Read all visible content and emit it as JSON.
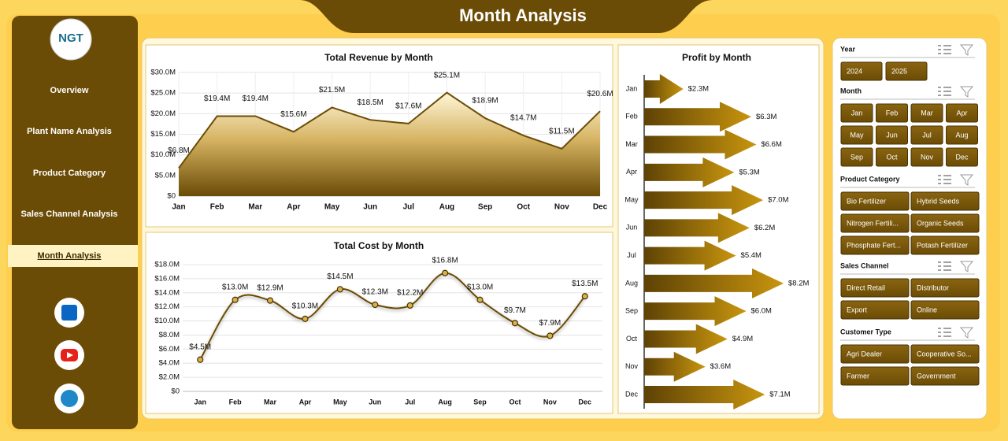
{
  "header": {
    "title": "Month Analysis",
    "logo": "NGT"
  },
  "nav": [
    "Overview",
    "Plant Name Analysis",
    "Product Category",
    "Sales Channel Analysis",
    "Month Analysis"
  ],
  "slicers": [
    {
      "title": "Year",
      "items": [
        "2024",
        "2025"
      ]
    },
    {
      "title": "Month",
      "items": [
        "Jan",
        "Feb",
        "Mar",
        "Apr",
        "May",
        "Jun",
        "Jul",
        "Aug",
        "Sep",
        "Oct",
        "Nov",
        "Dec"
      ]
    },
    {
      "title": "Product Category",
      "items": [
        "Bio Fertilizer",
        "Hybrid Seeds",
        "Nitrogen Fertili...",
        "Organic Seeds",
        "Phosphate Fert...",
        "Potash Fertilizer"
      ]
    },
    {
      "title": "Sales Channel",
      "items": [
        "Direct Retail",
        "Distributor",
        "Export",
        "Online"
      ]
    },
    {
      "title": "Customer Type",
      "items": [
        "Agri Dealer",
        "Cooperative So...",
        "Farmer",
        "Government"
      ]
    }
  ],
  "chart_data": [
    {
      "type": "area",
      "title": "Total Revenue by Month",
      "color": "#6b4c06",
      "categories": [
        "Jan",
        "Feb",
        "Mar",
        "Apr",
        "May",
        "Jun",
        "Jul",
        "Aug",
        "Sep",
        "Oct",
        "Nov",
        "Dec"
      ],
      "values": [
        6.8,
        19.4,
        19.4,
        15.6,
        21.5,
        18.5,
        17.6,
        25.1,
        18.9,
        14.7,
        11.5,
        20.6
      ],
      "value_labels": [
        "$6.8M",
        "$19.4M",
        "$19.4M",
        "$15.6M",
        "$21.5M",
        "$18.5M",
        "$17.6M",
        "$25.1M",
        "$18.9M",
        "$14.7M",
        "$11.5M",
        "$20.6M"
      ],
      "ylim": [
        0,
        30
      ],
      "yticks": [
        {
          "value": 0,
          "label": "$0"
        },
        {
          "value": 5,
          "label": "$5.0M"
        },
        {
          "value": 10,
          "label": "$10.0M"
        },
        {
          "value": 15,
          "label": "$15.0M"
        },
        {
          "value": 20,
          "label": "$20.0M"
        },
        {
          "value": 25,
          "label": "$25.0M"
        },
        {
          "value": 30,
          "label": "$30.0M"
        }
      ],
      "grid": true
    },
    {
      "type": "line",
      "title": "Total Cost by Month",
      "color": "#6b4c06",
      "categories": [
        "Jan",
        "Feb",
        "Mar",
        "Apr",
        "May",
        "Jun",
        "Jul",
        "Aug",
        "Sep",
        "Oct",
        "Nov",
        "Dec"
      ],
      "values": [
        4.5,
        13.0,
        12.9,
        10.3,
        14.5,
        12.3,
        12.2,
        16.8,
        13.0,
        9.7,
        7.9,
        13.5
      ],
      "value_labels": [
        "$4.5M",
        "$13.0M",
        "$12.9M",
        "$10.3M",
        "$14.5M",
        "$12.3M",
        "$12.2M",
        "$16.8M",
        "$13.0M",
        "$9.7M",
        "$7.9M",
        "$13.5M"
      ],
      "ylim": [
        0,
        18
      ],
      "yticks": [
        {
          "value": 0,
          "label": "$0"
        },
        {
          "value": 2,
          "label": "$2.0M"
        },
        {
          "value": 4,
          "label": "$4.0M"
        },
        {
          "value": 6,
          "label": "$6.0M"
        },
        {
          "value": 8,
          "label": "$8.0M"
        },
        {
          "value": 10,
          "label": "$10.0M"
        },
        {
          "value": 12,
          "label": "$12.0M"
        },
        {
          "value": 14,
          "label": "$14.0M"
        },
        {
          "value": 16,
          "label": "$16.0M"
        },
        {
          "value": 18,
          "label": "$18.0M"
        }
      ],
      "grid": true
    },
    {
      "type": "arrow-bar",
      "title": "Profit by Month",
      "color": "#6b4c06",
      "categories": [
        "Jan",
        "Feb",
        "Mar",
        "Apr",
        "May",
        "Jun",
        "Jul",
        "Aug",
        "Sep",
        "Oct",
        "Nov",
        "Dec"
      ],
      "values": [
        2.3,
        6.3,
        6.6,
        5.3,
        7.0,
        6.2,
        5.4,
        8.2,
        6.0,
        4.9,
        3.6,
        7.1
      ],
      "value_labels": [
        "$2.3M",
        "$6.3M",
        "$6.6M",
        "$5.3M",
        "$7.0M",
        "$6.2M",
        "$5.4M",
        "$8.2M",
        "$6.0M",
        "$4.9M",
        "$3.6M",
        "$7.1M"
      ]
    }
  ]
}
